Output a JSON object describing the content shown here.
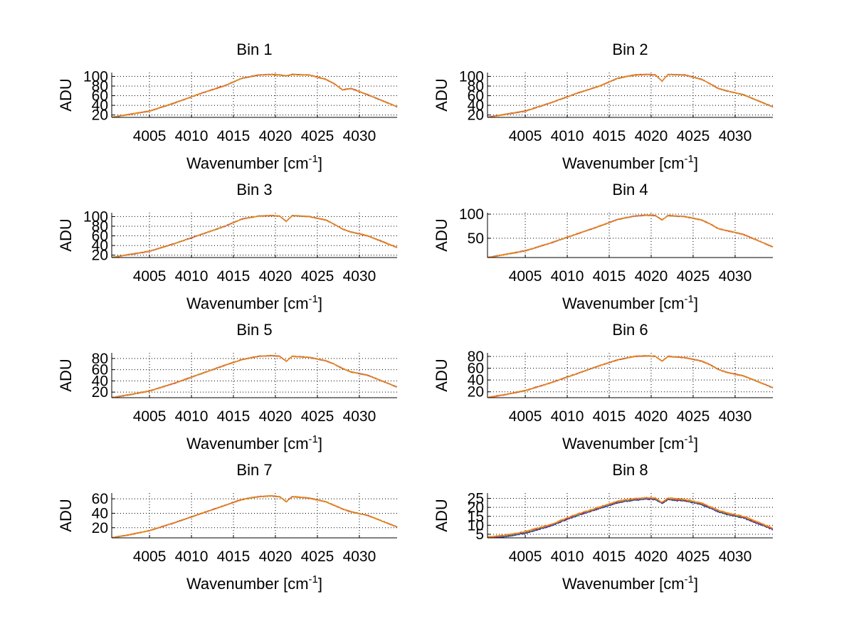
{
  "chart_data": [
    {
      "type": "line",
      "title": "Bin 1",
      "xlabel_main": "Wavenumber [cm",
      "xlabel_sup": "-1",
      "xlabel_end": "]",
      "ylabel": "ADU",
      "xlim": [
        4000.5,
        4034.5
      ],
      "ylim": [
        15,
        108
      ],
      "xticks": [
        4005,
        4010,
        4015,
        4020,
        4025,
        4030
      ],
      "xtick_labels": [
        "4005",
        "4010",
        "4015",
        "4020",
        "4025",
        "4030"
      ],
      "yticks": [
        20,
        40,
        60,
        80,
        100
      ],
      "ytick_labels": [
        "20",
        "40",
        "60",
        "80",
        "100"
      ],
      "grid": true,
      "series_colors": [
        "#0000ff",
        "#008000",
        "#ff0000",
        "#00bfbf",
        "#bf00bf",
        "#bfbf00",
        "#ff7f0e"
      ],
      "series": [
        {
          "x": [
            4000.5,
            4002.5,
            4005,
            4008,
            4011,
            4014,
            4016,
            4018,
            4019.5,
            4020.5,
            4021.3,
            4022,
            4024,
            4026,
            4027,
            4028,
            4029,
            4031,
            4034.5
          ],
          "y": [
            15,
            21,
            28,
            45,
            64,
            81,
            96,
            103,
            104,
            103,
            101,
            104,
            103,
            94,
            85,
            72,
            75,
            62,
            37
          ]
        }
      ]
    },
    {
      "type": "line",
      "title": "Bin 2",
      "xlabel_main": "Wavenumber [cm",
      "xlabel_sup": "-1",
      "xlabel_end": "]",
      "ylabel": "ADU",
      "xlim": [
        4000.5,
        4034.5
      ],
      "ylim": [
        15,
        108
      ],
      "xticks": [
        4005,
        4010,
        4015,
        4020,
        4025,
        4030
      ],
      "xtick_labels": [
        "4005",
        "4010",
        "4015",
        "4020",
        "4025",
        "4030"
      ],
      "yticks": [
        20,
        40,
        60,
        80,
        100
      ],
      "ytick_labels": [
        "20",
        "40",
        "60",
        "80",
        "100"
      ],
      "grid": true,
      "series_colors": [
        "#0000ff",
        "#008000",
        "#ff0000",
        "#00bfbf",
        "#bf00bf",
        "#bfbf00",
        "#ff7f0e"
      ],
      "series": [
        {
          "x": [
            4000.5,
            4002.5,
            4005,
            4008,
            4011,
            4014,
            4016,
            4018,
            4019.5,
            4020.5,
            4021.3,
            4022,
            4024,
            4026,
            4027,
            4028,
            4029,
            4031,
            4034.5
          ],
          "y": [
            15,
            21,
            28,
            45,
            64,
            81,
            96,
            103,
            104,
            103,
            90,
            104,
            103,
            94,
            85,
            75,
            70,
            62,
            37
          ]
        }
      ]
    },
    {
      "type": "line",
      "title": "Bin 3",
      "xlabel_main": "Wavenumber [cm",
      "xlabel_sup": "-1",
      "xlabel_end": "]",
      "ylabel": "ADU",
      "xlim": [
        4000.5,
        4034.5
      ],
      "ylim": [
        15,
        108
      ],
      "xticks": [
        4005,
        4010,
        4015,
        4020,
        4025,
        4030
      ],
      "xtick_labels": [
        "4005",
        "4010",
        "4015",
        "4020",
        "4025",
        "4030"
      ],
      "yticks": [
        20,
        40,
        60,
        80,
        100
      ],
      "ytick_labels": [
        "20",
        "40",
        "60",
        "80",
        "100"
      ],
      "grid": true,
      "series_colors": [
        "#0000ff",
        "#008000",
        "#ff0000",
        "#00bfbf",
        "#bf00bf",
        "#bfbf00",
        "#ff7f0e"
      ],
      "series": [
        {
          "x": [
            4000.5,
            4002.5,
            4005,
            4008,
            4011,
            4014,
            4016,
            4018,
            4019.5,
            4020.5,
            4021.3,
            4022,
            4024,
            4026,
            4027,
            4028,
            4029,
            4031,
            4034.5
          ],
          "y": [
            15,
            21,
            28,
            44,
            62,
            80,
            95,
            101,
            102,
            101,
            90,
            102,
            100,
            93,
            84,
            74,
            68,
            60,
            36
          ]
        }
      ]
    },
    {
      "type": "line",
      "title": "Bin 4",
      "xlabel_main": "Wavenumber [cm",
      "xlabel_sup": "-1",
      "xlabel_end": "]",
      "ylabel": "ADU",
      "xlim": [
        4000.5,
        4034.5
      ],
      "ylim": [
        10,
        103
      ],
      "xticks": [
        4005,
        4010,
        4015,
        4020,
        4025,
        4030
      ],
      "xtick_labels": [
        "4005",
        "4010",
        "4015",
        "4020",
        "4025",
        "4030"
      ],
      "yticks": [
        50,
        100
      ],
      "ytick_labels": [
        "50",
        "100"
      ],
      "grid": true,
      "series_colors": [
        "#0000ff",
        "#008000",
        "#ff0000",
        "#00bfbf",
        "#bf00bf",
        "#bfbf00",
        "#ff7f0e"
      ],
      "series": [
        {
          "x": [
            4000.5,
            4002.5,
            4005,
            4008,
            4011,
            4014,
            4016,
            4018,
            4019.5,
            4020.5,
            4021.3,
            4022,
            4024,
            4026,
            4027,
            4028,
            4029,
            4031,
            4034.5
          ],
          "y": [
            10,
            16,
            24,
            40,
            58,
            76,
            89,
            96,
            98,
            97,
            88,
            97,
            95,
            88,
            80,
            70,
            66,
            58,
            32
          ]
        }
      ]
    },
    {
      "type": "line",
      "title": "Bin 5",
      "xlabel_main": "Wavenumber [cm",
      "xlabel_sup": "-1",
      "xlabel_end": "]",
      "ylabel": "ADU",
      "xlim": [
        4000.5,
        4034.5
      ],
      "ylim": [
        10,
        90
      ],
      "xticks": [
        4005,
        4010,
        4015,
        4020,
        4025,
        4030
      ],
      "xtick_labels": [
        "4005",
        "4010",
        "4015",
        "4020",
        "4025",
        "4030"
      ],
      "yticks": [
        20,
        40,
        60,
        80
      ],
      "ytick_labels": [
        "20",
        "40",
        "60",
        "80"
      ],
      "grid": true,
      "series_colors": [
        "#0000ff",
        "#008000",
        "#ff0000",
        "#00bfbf",
        "#bf00bf",
        "#bfbf00",
        "#ff7f0e"
      ],
      "series": [
        {
          "x": [
            4000.5,
            4002.5,
            4005,
            4008,
            4011,
            4014,
            4016,
            4018,
            4019.5,
            4020.5,
            4021.3,
            4022,
            4024,
            4026,
            4027,
            4028,
            4029,
            4031,
            4034.5
          ],
          "y": [
            10,
            15,
            22,
            36,
            52,
            68,
            78,
            84,
            85,
            84,
            75,
            84,
            82,
            76,
            70,
            62,
            56,
            50,
            29
          ]
        }
      ]
    },
    {
      "type": "line",
      "title": "Bin 6",
      "xlabel_main": "Wavenumber [cm",
      "xlabel_sup": "-1",
      "xlabel_end": "]",
      "ylabel": "ADU",
      "xlim": [
        4000.5,
        4034.5
      ],
      "ylim": [
        10,
        86
      ],
      "xticks": [
        4005,
        4010,
        4015,
        4020,
        4025,
        4030
      ],
      "xtick_labels": [
        "4005",
        "4010",
        "4015",
        "4020",
        "4025",
        "4030"
      ],
      "yticks": [
        20,
        40,
        60,
        80
      ],
      "ytick_labels": [
        "20",
        "40",
        "60",
        "80"
      ],
      "grid": true,
      "series_colors": [
        "#0000ff",
        "#008000",
        "#ff0000",
        "#00bfbf",
        "#bf00bf",
        "#bfbf00",
        "#ff7f0e"
      ],
      "series": [
        {
          "x": [
            4000.5,
            4002.5,
            4005,
            4008,
            4011,
            4014,
            4016,
            4018,
            4019.5,
            4020.5,
            4021.3,
            4022,
            4024,
            4026,
            4027,
            4028,
            4029,
            4031,
            4034.5
          ],
          "y": [
            10,
            15,
            22,
            35,
            50,
            65,
            74,
            80,
            81,
            80,
            72,
            80,
            78,
            72,
            66,
            58,
            53,
            47,
            27
          ]
        }
      ]
    },
    {
      "type": "line",
      "title": "Bin 7",
      "xlabel_main": "Wavenumber [cm",
      "xlabel_sup": "-1",
      "xlabel_end": "]",
      "ylabel": "ADU",
      "xlim": [
        4000.5,
        4034.5
      ],
      "ylim": [
        6,
        68
      ],
      "xticks": [
        4005,
        4010,
        4015,
        4020,
        4025,
        4030
      ],
      "xtick_labels": [
        "4005",
        "4010",
        "4015",
        "4020",
        "4025",
        "4030"
      ],
      "yticks": [
        20,
        40,
        60
      ],
      "ytick_labels": [
        "20",
        "40",
        "60"
      ],
      "grid": true,
      "series_colors": [
        "#0000ff",
        "#008000",
        "#ff0000",
        "#00bfbf",
        "#bf00bf",
        "#bfbf00",
        "#ff7f0e"
      ],
      "series": [
        {
          "x": [
            4000.5,
            4002.5,
            4005,
            4008,
            4011,
            4014,
            4016,
            4018,
            4019.5,
            4020.5,
            4021.3,
            4022,
            4024,
            4026,
            4027,
            4028,
            4029,
            4031,
            4034.5
          ],
          "y": [
            6,
            10,
            16,
            27,
            39,
            51,
            59,
            63,
            64,
            63,
            56,
            63,
            61,
            56,
            51,
            46,
            42,
            37,
            21
          ]
        }
      ]
    },
    {
      "type": "line",
      "title": "Bin 8",
      "xlabel_main": "Wavenumber [cm",
      "xlabel_sup": "-1",
      "xlabel_end": "]",
      "ylabel": "ADU",
      "xlim": [
        4000.5,
        4034.5
      ],
      "ylim": [
        3,
        28
      ],
      "xticks": [
        4005,
        4010,
        4015,
        4020,
        4025,
        4030
      ],
      "xtick_labels": [
        "4005",
        "4010",
        "4015",
        "4020",
        "4025",
        "4030"
      ],
      "yticks": [
        5,
        10,
        15,
        20,
        25
      ],
      "ytick_labels": [
        "5",
        "10",
        "15",
        "20",
        "25"
      ],
      "grid": true,
      "series_colors": [
        "#0000ff",
        "#008000",
        "#ff0000",
        "#00bfbf",
        "#bf00bf",
        "#bfbf00",
        "#ff7f0e"
      ],
      "series": [
        {
          "x": [
            4000.5,
            4002.5,
            4005,
            4008,
            4011,
            4014,
            4016,
            4018,
            4019.5,
            4020.5,
            4021.3,
            4022,
            4024,
            4026,
            4027,
            4028,
            4029,
            4031,
            4034.5
          ],
          "y": [
            3,
            4,
            6,
            10,
            15.5,
            20,
            23,
            24.5,
            25,
            24.8,
            22.5,
            24.7,
            24,
            22,
            20,
            18,
            16.5,
            14.5,
            8
          ]
        }
      ]
    }
  ]
}
